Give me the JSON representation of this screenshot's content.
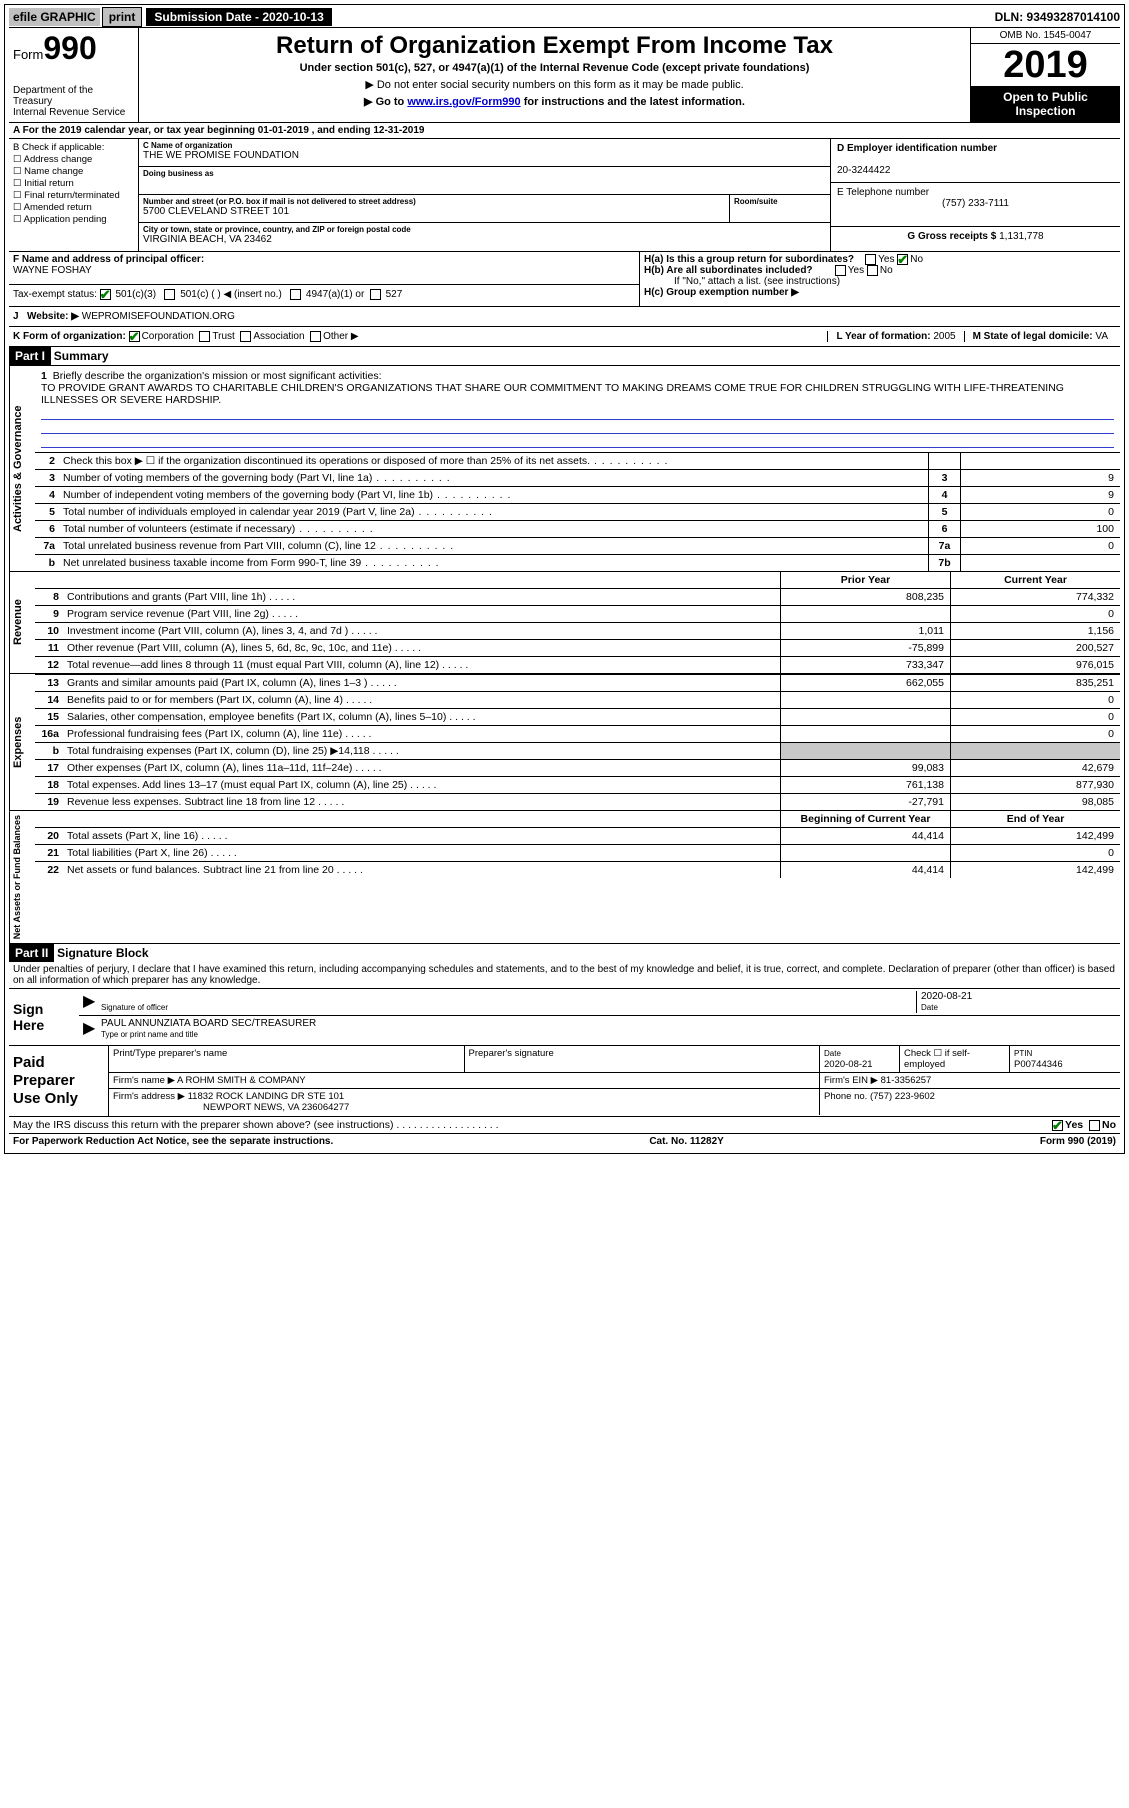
{
  "topbar": {
    "efile": "efile GRAPHIC",
    "print": "print",
    "submission": "Submission Date - 2020-10-13",
    "dln": "DLN: 93493287014100"
  },
  "header": {
    "form_prefix": "Form",
    "form_num": "990",
    "dept": "Department of the Treasury\nInternal Revenue Service",
    "title": "Return of Organization Exempt From Income Tax",
    "subtitle": "Under section 501(c), 527, or 4947(a)(1) of the Internal Revenue Code (except private foundations)",
    "note1": "▶ Do not enter social security numbers on this form as it may be made public.",
    "note2_pre": "▶ Go to ",
    "note2_link": "www.irs.gov/Form990",
    "note2_post": " for instructions and the latest information.",
    "omb": "OMB No. 1545-0047",
    "year": "2019",
    "inspect": "Open to Public Inspection"
  },
  "rowA": "A For the 2019 calendar year, or tax year beginning 01-01-2019    , and ending 12-31-2019",
  "colB": {
    "hdr": "B Check if applicable:",
    "items": [
      "Address change",
      "Name change",
      "Initial return",
      "Final return/terminated",
      "Amended return",
      "Application pending"
    ]
  },
  "colC": {
    "name_lbl": "C Name of organization",
    "name": "THE WE PROMISE FOUNDATION",
    "dba_lbl": "Doing business as",
    "dba": "",
    "street_lbl": "Number and street (or P.O. box if mail is not delivered to street address)",
    "street": "5700 CLEVELAND STREET 101",
    "room_lbl": "Room/suite",
    "city_lbl": "City or town, state or province, country, and ZIP or foreign postal code",
    "city": "VIRGINIA BEACH, VA  23462"
  },
  "colD": {
    "ein_lbl": "D Employer identification number",
    "ein": "20-3244422",
    "phone_lbl": "E Telephone number",
    "phone": "(757) 233-7111",
    "gross_lbl": "G Gross receipts $",
    "gross": "1,131,778"
  },
  "sectionF": {
    "f_lbl": "F  Name and address of principal officer:",
    "f_name": "WAYNE FOSHAY",
    "ha": "H(a)  Is this a group return for subordinates?",
    "hb": "H(b)  Are all subordinates included?",
    "hb_note": "If \"No,\" attach a list. (see instructions)",
    "hc": "H(c)  Group exemption number ▶",
    "tax_lbl": "Tax-exempt status:",
    "tax_501c3": "501(c)(3)",
    "tax_501c": "501(c) (  ) ◀ (insert no.)",
    "tax_4947": "4947(a)(1) or",
    "tax_527": "527"
  },
  "rowJ": {
    "lbl": "J",
    "website_lbl": "Website: ▶",
    "website": "WEPROMISEFOUNDATION.ORG"
  },
  "rowK": {
    "lbl": "K Form of organization:",
    "corp": "Corporation",
    "trust": "Trust",
    "assoc": "Association",
    "other": "Other ▶",
    "year_lbl": "L Year of formation:",
    "year": "2005",
    "state_lbl": "M State of legal domicile:",
    "state": "VA"
  },
  "part1": {
    "hdr": "Part I",
    "title": "Summary"
  },
  "mission": {
    "n": "1",
    "lbl": "Briefly describe the organization's mission or most significant activities:",
    "text": "TO PROVIDE GRANT AWARDS TO CHARITABLE CHILDREN'S ORGANIZATIONS THAT SHARE OUR COMMITMENT TO MAKING DREAMS COME TRUE FOR CHILDREN STRUGGLING WITH LIFE-THREATENING ILLNESSES OR SEVERE HARDSHIP."
  },
  "gov_rows": [
    {
      "n": "2",
      "txt": "Check this box ▶ ☐  if the organization discontinued its operations or disposed of more than 25% of its net assets.",
      "box": "",
      "val": ""
    },
    {
      "n": "3",
      "txt": "Number of voting members of the governing body (Part VI, line 1a)",
      "box": "3",
      "val": "9"
    },
    {
      "n": "4",
      "txt": "Number of independent voting members of the governing body (Part VI, line 1b)",
      "box": "4",
      "val": "9"
    },
    {
      "n": "5",
      "txt": "Total number of individuals employed in calendar year 2019 (Part V, line 2a)",
      "box": "5",
      "val": "0"
    },
    {
      "n": "6",
      "txt": "Total number of volunteers (estimate if necessary)",
      "box": "6",
      "val": "100"
    },
    {
      "n": "7a",
      "txt": "Total unrelated business revenue from Part VIII, column (C), line 12",
      "box": "7a",
      "val": "0"
    },
    {
      "n": "b",
      "txt": "Net unrelated business taxable income from Form 990-T, line 39",
      "box": "7b",
      "val": ""
    }
  ],
  "vtabs": {
    "gov": "Activities & Governance",
    "rev": "Revenue",
    "exp": "Expenses",
    "net": "Net Assets or Fund Balances"
  },
  "fin_hdr": {
    "py": "Prior Year",
    "cy": "Current Year"
  },
  "rev_rows": [
    {
      "n": "8",
      "txt": "Contributions and grants (Part VIII, line 1h)",
      "py": "808,235",
      "cy": "774,332"
    },
    {
      "n": "9",
      "txt": "Program service revenue (Part VIII, line 2g)",
      "py": "",
      "cy": "0"
    },
    {
      "n": "10",
      "txt": "Investment income (Part VIII, column (A), lines 3, 4, and 7d )",
      "py": "1,011",
      "cy": "1,156"
    },
    {
      "n": "11",
      "txt": "Other revenue (Part VIII, column (A), lines 5, 6d, 8c, 9c, 10c, and 11e)",
      "py": "-75,899",
      "cy": "200,527"
    },
    {
      "n": "12",
      "txt": "Total revenue—add lines 8 through 11 (must equal Part VIII, column (A), line 12)",
      "py": "733,347",
      "cy": "976,015"
    }
  ],
  "exp_rows": [
    {
      "n": "13",
      "txt": "Grants and similar amounts paid (Part IX, column (A), lines 1–3 )",
      "py": "662,055",
      "cy": "835,251"
    },
    {
      "n": "14",
      "txt": "Benefits paid to or for members (Part IX, column (A), line 4)",
      "py": "",
      "cy": "0"
    },
    {
      "n": "15",
      "txt": "Salaries, other compensation, employee benefits (Part IX, column (A), lines 5–10)",
      "py": "",
      "cy": "0"
    },
    {
      "n": "16a",
      "txt": "Professional fundraising fees (Part IX, column (A), line 11e)",
      "py": "",
      "cy": "0"
    },
    {
      "n": "b",
      "txt": "Total fundraising expenses (Part IX, column (D), line 25) ▶14,118",
      "py": "grey",
      "cy": "grey"
    },
    {
      "n": "17",
      "txt": "Other expenses (Part IX, column (A), lines 11a–11d, 11f–24e)",
      "py": "99,083",
      "cy": "42,679"
    },
    {
      "n": "18",
      "txt": "Total expenses. Add lines 13–17 (must equal Part IX, column (A), line 25)",
      "py": "761,138",
      "cy": "877,930"
    },
    {
      "n": "19",
      "txt": "Revenue less expenses. Subtract line 18 from line 12",
      "py": "-27,791",
      "cy": "98,085"
    }
  ],
  "net_hdr": {
    "py": "Beginning of Current Year",
    "cy": "End of Year"
  },
  "net_rows": [
    {
      "n": "20",
      "txt": "Total assets (Part X, line 16)",
      "py": "44,414",
      "cy": "142,499"
    },
    {
      "n": "21",
      "txt": "Total liabilities (Part X, line 26)",
      "py": "",
      "cy": "0"
    },
    {
      "n": "22",
      "txt": "Net assets or fund balances. Subtract line 21 from line 20",
      "py": "44,414",
      "cy": "142,499"
    }
  ],
  "part2": {
    "hdr": "Part II",
    "title": "Signature Block"
  },
  "sig": {
    "intro": "Under penalties of perjury, I declare that I have examined this return, including accompanying schedules and statements, and to the best of my knowledge and belief, it is true, correct, and complete. Declaration of preparer (other than officer) is based on all information of which preparer has any knowledge.",
    "sign_here": "Sign Here",
    "sig_of": "Signature of officer",
    "date": "2020-08-21",
    "date_lbl": "Date",
    "name": "PAUL ANNUNZIATA  BOARD SEC/TREASURER",
    "name_lbl": "Type or print name and title"
  },
  "prep": {
    "title": "Paid Preparer Use Only",
    "r1": {
      "c1": "Print/Type preparer's name",
      "c2": "Preparer's signature",
      "c3_lbl": "Date",
      "c3": "2020-08-21",
      "c4": "Check ☐ if self-employed",
      "c5_lbl": "PTIN",
      "c5": "P00744346"
    },
    "r2": {
      "lbl": "Firm's name      ▶",
      "val": "A ROHM SMITH & COMPANY",
      "ein_lbl": "Firm's EIN ▶",
      "ein": "81-3356257"
    },
    "r3": {
      "lbl": "Firm's address ▶",
      "val": "11832 ROCK LANDING DR STE 101",
      "ph_lbl": "Phone no.",
      "ph": "(757) 223-9602"
    },
    "r3b": "NEWPORT NEWS, VA  236064277",
    "discuss": "May the IRS discuss this return with the preparer shown above? (see instructions)",
    "yes": "Yes",
    "no": "No"
  },
  "footer": {
    "left": "For Paperwork Reduction Act Notice, see the separate instructions.",
    "mid": "Cat. No. 11282Y",
    "right": "Form 990 (2019)"
  }
}
